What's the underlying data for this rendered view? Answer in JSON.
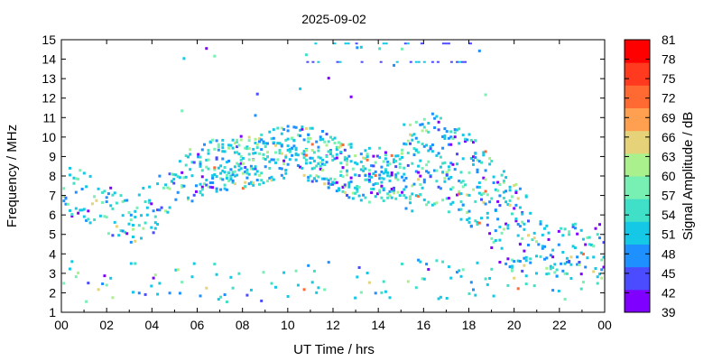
{
  "chart_data": {
    "type": "heatmap",
    "title": "2025-09-02",
    "xlabel": "UT Time / hrs",
    "ylabel": "Frequency / MHz",
    "colorbar_label": "Signal Amplitude / dB",
    "xlim": [
      0,
      24
    ],
    "ylim": [
      1,
      15
    ],
    "x_ticks": [
      "00",
      "02",
      "04",
      "06",
      "08",
      "10",
      "12",
      "14",
      "16",
      "18",
      "20",
      "22",
      "00"
    ],
    "y_ticks": [
      "1",
      "2",
      "3",
      "4",
      "5",
      "6",
      "7",
      "8",
      "9",
      "10",
      "11",
      "12",
      "13",
      "14",
      "15"
    ],
    "colorbar_ticks": [
      "39",
      "42",
      "45",
      "48",
      "51",
      "54",
      "57",
      "60",
      "63",
      "66",
      "69",
      "72",
      "75",
      "78",
      "81"
    ],
    "colorbar_levels": [
      39,
      42,
      45,
      48,
      51,
      54,
      57,
      60,
      63,
      66,
      69,
      72,
      75,
      78,
      81
    ],
    "colorbar_colors": [
      "#8000ff",
      "#4b4bff",
      "#1e90ff",
      "#14c8e6",
      "#40e0c8",
      "#78f0b4",
      "#aaf08c",
      "#e6d278",
      "#ffa050",
      "#ff6a32",
      "#ff3a1e",
      "#ff0000"
    ],
    "traces": [
      {
        "name": "",
        "x": [
          0.0,
          0.5,
          1.0,
          1.5,
          2.0,
          2.5,
          3.0,
          3.5,
          4.0,
          4.5,
          5.0,
          5.5,
          6.0,
          6.5,
          7.0,
          7.5,
          8.0,
          8.5,
          9.0,
          9.5,
          10.0,
          10.5,
          11.0,
          11.5,
          12.0,
          12.5,
          13.0,
          13.5,
          14.0,
          14.5,
          15.0,
          15.5,
          16.0,
          16.5,
          17.0,
          17.5,
          18.0,
          18.5,
          19.0,
          19.5,
          20.0,
          20.5,
          21.0,
          21.5,
          22.0
        ],
        "y": [
          7.5,
          7.2,
          6.8,
          6.5,
          6.3,
          6.1,
          6.0,
          6.2,
          6.5,
          7.0,
          7.5,
          8.0,
          8.3,
          8.5,
          8.6,
          8.7,
          8.8,
          8.9,
          9.0,
          9.2,
          9.4,
          9.3,
          9.2,
          9.0,
          8.7,
          8.4,
          8.2,
          8.1,
          8.1,
          8.2,
          8.4,
          8.7,
          9.0,
          8.9,
          8.6,
          8.2,
          7.8,
          7.2,
          6.6,
          6.0,
          5.4,
          5.0,
          4.6,
          4.4,
          4.2
        ]
      }
    ]
  }
}
